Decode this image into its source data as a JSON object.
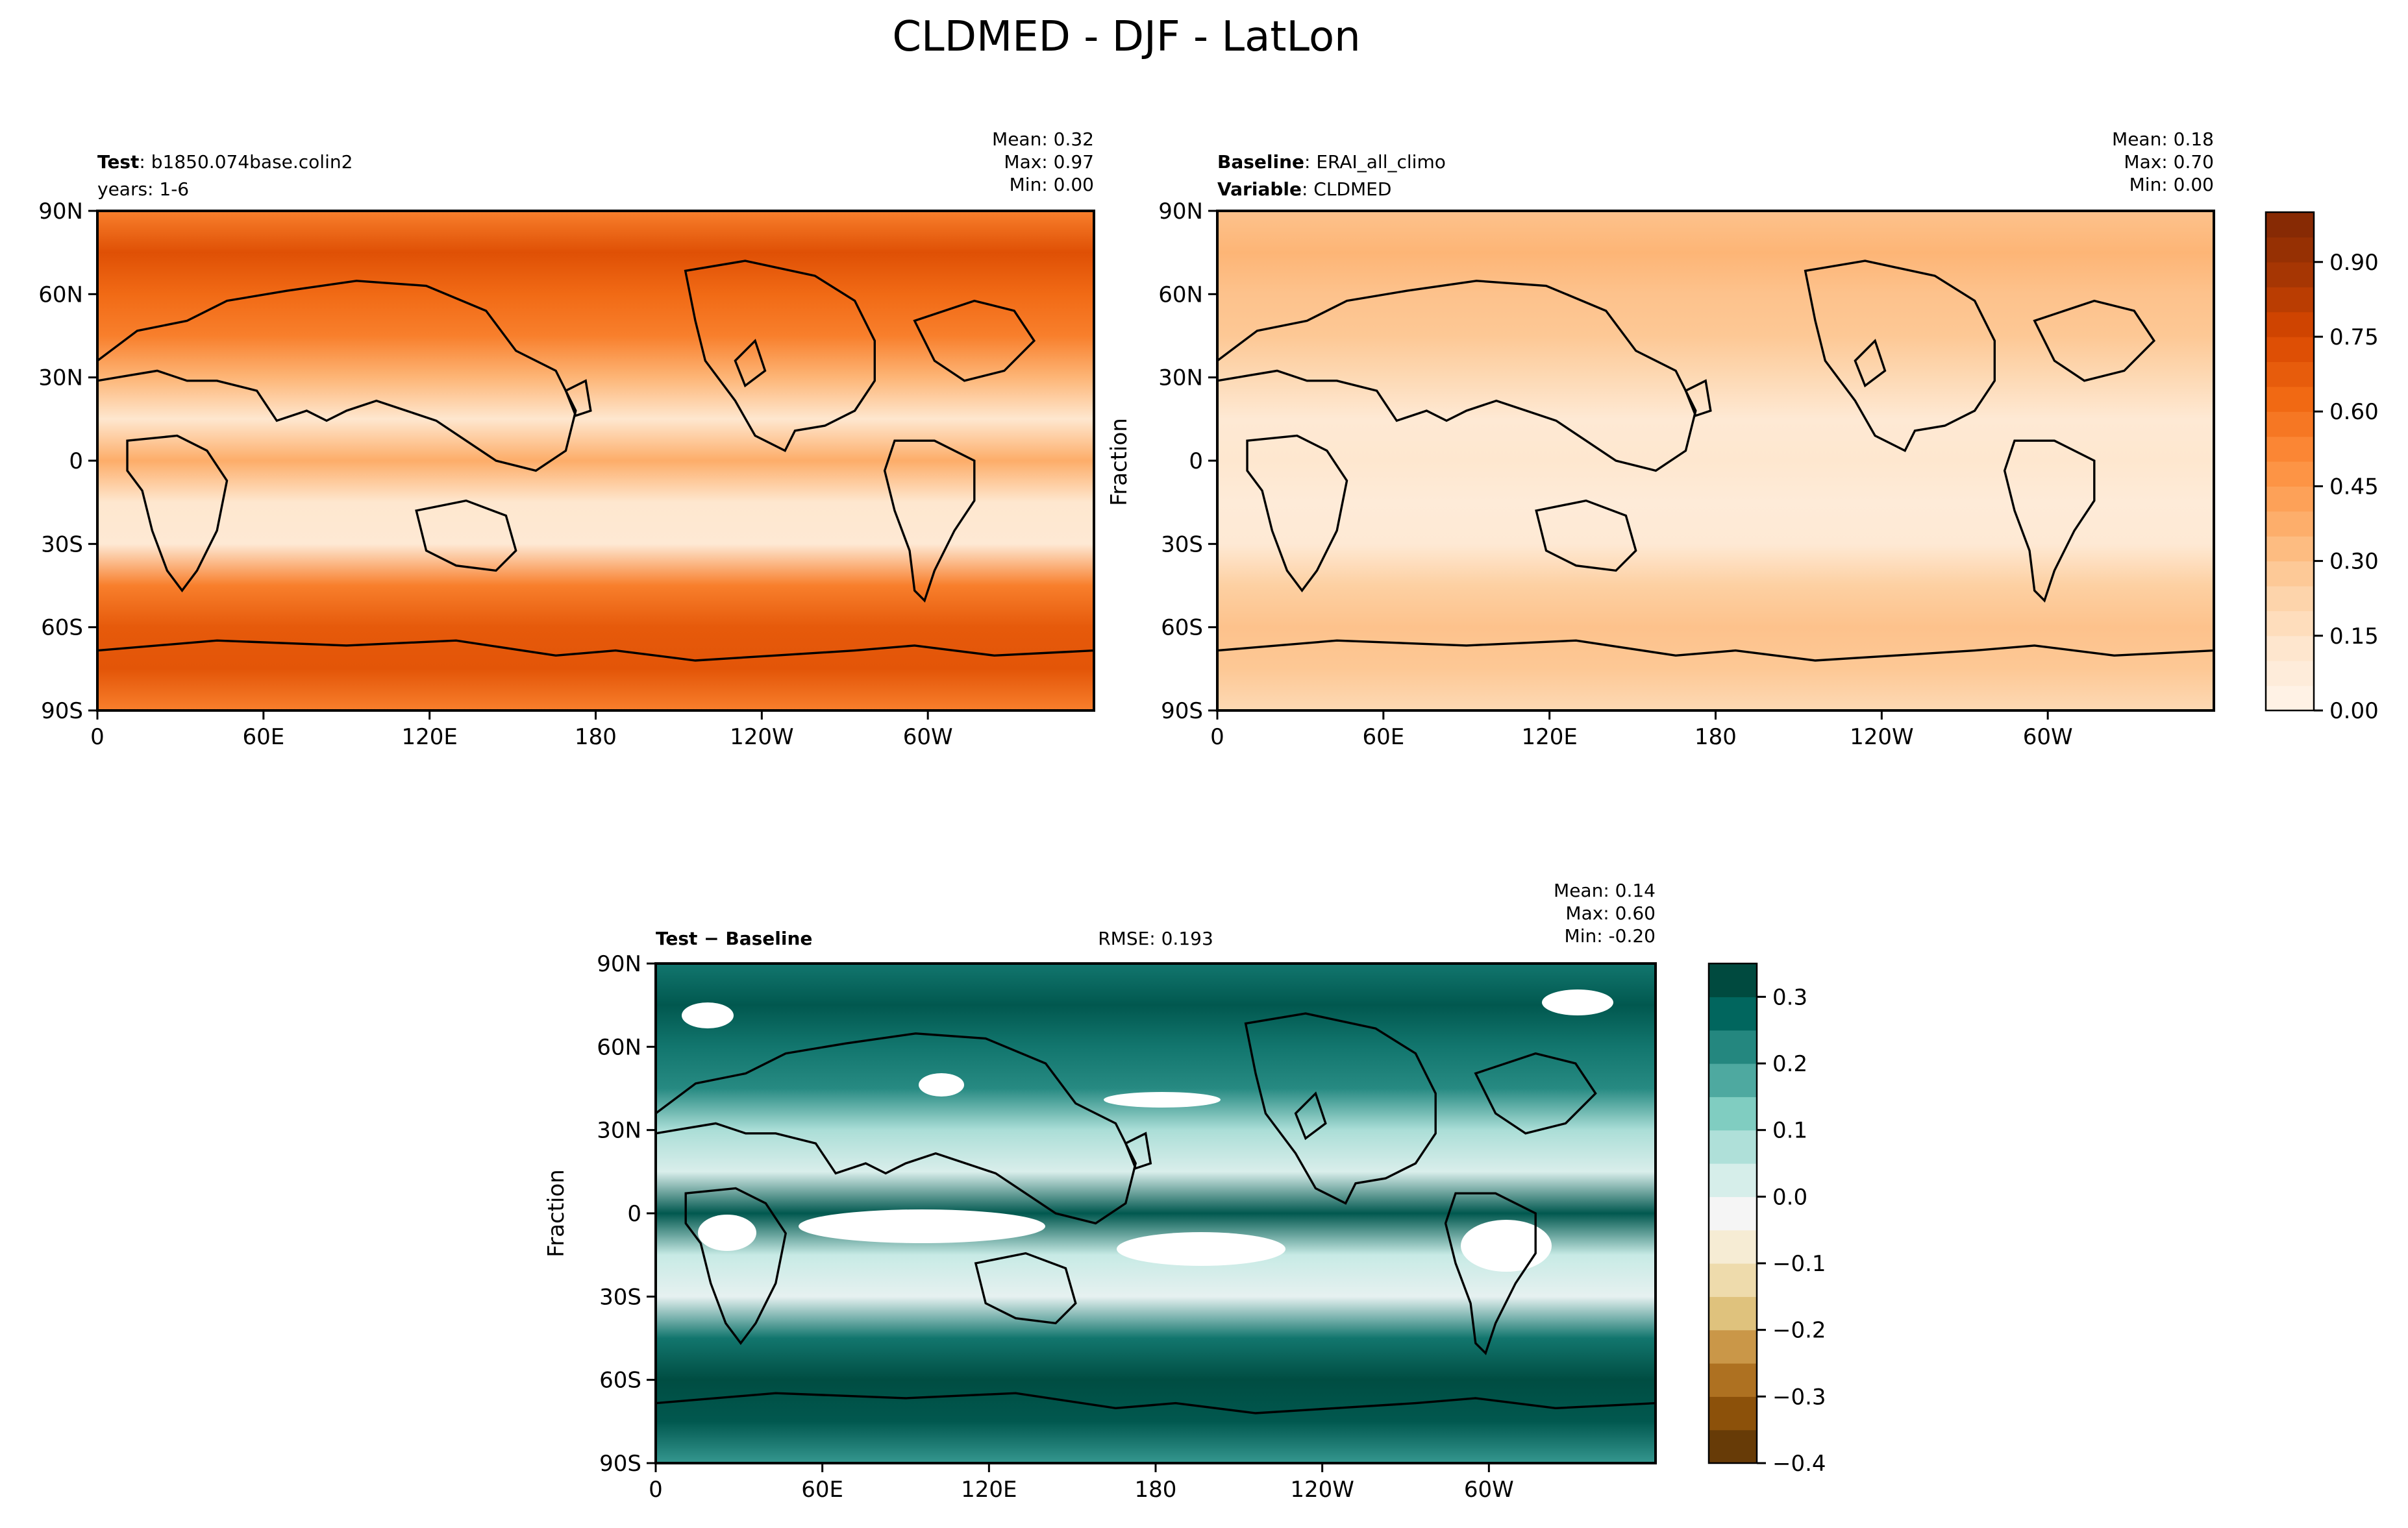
{
  "title": "CLDMED - DJF - LatLon",
  "colors": {
    "orange_ramp": [
      "#fff5eb",
      "#fee6ce",
      "#fdd0a2",
      "#fdae6b",
      "#fd8d3c",
      "#f16913",
      "#d94801",
      "#a63603",
      "#7f2704"
    ],
    "brbg_ramp": [
      "#543005",
      "#8c510a",
      "#bf812d",
      "#dfc27d",
      "#f6e8c3",
      "#f5f5f5",
      "#c7eae5",
      "#80cdc1",
      "#35978f",
      "#01665e",
      "#003c30"
    ],
    "coast": "#000000"
  },
  "chart_data": [
    {
      "type": "heatmap",
      "id": "test",
      "label_bold": "Test",
      "label_rest": ": b1850.074base.colin2",
      "subtitle": "years: 1-6",
      "stats": {
        "mean": "Mean:  0.32",
        "max": "Max:  0.97",
        "min": "Min:  0.00"
      },
      "xticks": [
        "0",
        "60E",
        "120E",
        "180",
        "120W",
        "60W"
      ],
      "yticks": [
        "90N",
        "60N",
        "30N",
        "0",
        "30S",
        "60S",
        "90S"
      ],
      "ylabel": "",
      "value_range": [
        0.0,
        1.0
      ],
      "zonal_mean_profile": {
        "lat": [
          90,
          75,
          60,
          45,
          30,
          15,
          0,
          -15,
          -30,
          -45,
          -60,
          -75,
          -90
        ],
        "value": [
          0.55,
          0.72,
          0.62,
          0.55,
          0.35,
          0.12,
          0.38,
          0.12,
          0.1,
          0.55,
          0.68,
          0.7,
          0.55
        ]
      }
    },
    {
      "type": "heatmap",
      "id": "baseline",
      "label_bold": "Baseline",
      "label_rest": ": ERAI_all_climo",
      "label2_bold": "Variable",
      "label2_rest": ": CLDMED",
      "stats": {
        "mean": "Mean:  0.18",
        "max": "Max:  0.70",
        "min": "Min:  0.00"
      },
      "xticks": [
        "0",
        "60E",
        "120E",
        "180",
        "120W",
        "60W"
      ],
      "yticks": [
        "90N",
        "60N",
        "30N",
        "0",
        "30S",
        "60S",
        "90S"
      ],
      "ylabel": "Fraction",
      "value_range": [
        0.0,
        1.0
      ],
      "zonal_mean_profile": {
        "lat": [
          90,
          75,
          60,
          45,
          30,
          15,
          0,
          -15,
          -30,
          -45,
          -60,
          -75,
          -90
        ],
        "value": [
          0.3,
          0.35,
          0.3,
          0.28,
          0.2,
          0.1,
          0.12,
          0.08,
          0.1,
          0.25,
          0.3,
          0.28,
          0.2
        ]
      },
      "colorbar": {
        "ticks": [
          "0.00",
          "0.15",
          "0.30",
          "0.45",
          "0.60",
          "0.75",
          "0.90"
        ],
        "tick_values": [
          0.0,
          0.15,
          0.3,
          0.45,
          0.6,
          0.75,
          0.9
        ],
        "range": [
          0.0,
          1.0
        ]
      }
    },
    {
      "type": "heatmap",
      "id": "diff",
      "label_bold": "Test − Baseline",
      "rmse": "RMSE: 0.193",
      "stats": {
        "mean": "Mean:  0.14",
        "max": "Max:  0.60",
        "min": "Min: -0.20"
      },
      "xticks": [
        "0",
        "60E",
        "120E",
        "180",
        "120W",
        "60W"
      ],
      "yticks": [
        "90N",
        "60N",
        "30N",
        "0",
        "30S",
        "60S",
        "90S"
      ],
      "ylabel": "Fraction",
      "value_range": [
        -0.4,
        0.35
      ],
      "zonal_mean_profile": {
        "lat": [
          90,
          75,
          60,
          45,
          30,
          15,
          0,
          -15,
          -30,
          -45,
          -60,
          -75,
          -90
        ],
        "value": [
          0.25,
          0.3,
          0.25,
          0.22,
          0.08,
          0.02,
          0.3,
          0.05,
          0.0,
          0.25,
          0.32,
          0.3,
          0.2
        ]
      },
      "colorbar": {
        "ticks": [
          "0.3",
          "0.2",
          "0.1",
          "0.0",
          "−0.1",
          "−0.2",
          "−0.3",
          "−0.4"
        ],
        "tick_values": [
          0.3,
          0.2,
          0.1,
          0.0,
          -0.1,
          -0.2,
          -0.3,
          -0.4
        ],
        "range": [
          -0.4,
          0.35
        ]
      }
    }
  ]
}
